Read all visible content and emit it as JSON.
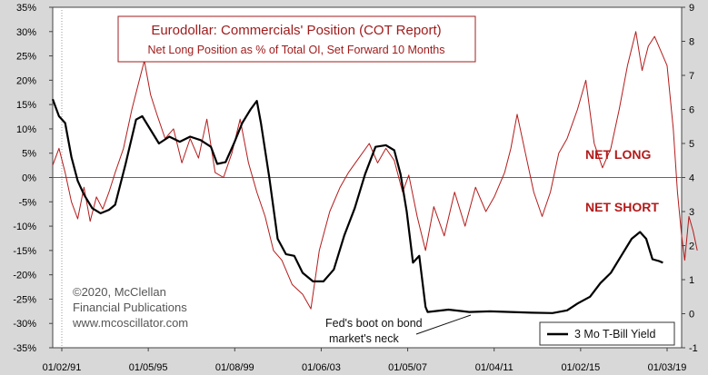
{
  "chart_data": {
    "type": "line",
    "title": "Eurodollar: Commercials' Position (COT Report)",
    "subtitle": "Net Long Position as % of Total OI, Set Forward 10 Months",
    "x_tick_labels": [
      "01/02/91",
      "01/05/95",
      "01/08/99",
      "01/06/03",
      "01/05/07",
      "01/04/11",
      "01/02/15",
      "01/03/19"
    ],
    "x_range": [
      1991.0,
      2021.2
    ],
    "left_axis": {
      "range": [
        -35,
        35
      ],
      "ticks": [
        "35%",
        "30%",
        "25%",
        "20%",
        "15%",
        "10%",
        "5%",
        "0%",
        "-5%",
        "-10%",
        "-15%",
        "-20%",
        "-25%",
        "-30%",
        "-35%"
      ],
      "tick_values": [
        35,
        30,
        25,
        20,
        15,
        10,
        5,
        0,
        -5,
        -10,
        -15,
        -20,
        -25,
        -30,
        -35
      ]
    },
    "right_axis": {
      "range": [
        -1,
        9
      ],
      "ticks": [
        "9",
        "8",
        "7",
        "6",
        "5",
        "4",
        "3",
        "2",
        "1",
        "0",
        "-1"
      ],
      "tick_values": [
        9,
        8,
        7,
        6,
        5,
        4,
        3,
        2,
        1,
        0,
        -1
      ]
    },
    "annotations": {
      "net_long": "NET LONG",
      "net_short": "NET SHORT",
      "copyright": "©2020, McClellan",
      "publisher": "Financial Publications",
      "website": "www.mcoscillator.com",
      "fed_line1": "Fed's boot on bond",
      "fed_line2": "market's neck"
    },
    "legend": "3 Mo T-Bill Yield",
    "series": [
      {
        "name": "Eurodollar Commercials Net Long % of OI (forward 10 months)",
        "color": "#b31b1b",
        "axis": "left",
        "points": [
          [
            1991.0,
            2.5
          ],
          [
            1991.3,
            6.0
          ],
          [
            1991.6,
            1.0
          ],
          [
            1991.9,
            -5.0
          ],
          [
            1992.2,
            -8.5
          ],
          [
            1992.5,
            -2.0
          ],
          [
            1992.8,
            -9.0
          ],
          [
            1993.1,
            -4.0
          ],
          [
            1993.4,
            -6.5
          ],
          [
            1993.7,
            -3.0
          ],
          [
            1994.0,
            1.0
          ],
          [
            1994.4,
            6.0
          ],
          [
            1994.8,
            14.0
          ],
          [
            1995.1,
            19.0
          ],
          [
            1995.4,
            24.0
          ],
          [
            1995.7,
            17.0
          ],
          [
            1996.0,
            13.0
          ],
          [
            1996.4,
            8.0
          ],
          [
            1996.8,
            10.0
          ],
          [
            1997.2,
            3.0
          ],
          [
            1997.6,
            8.0
          ],
          [
            1998.0,
            4.0
          ],
          [
            1998.4,
            12.0
          ],
          [
            1998.8,
            1.0
          ],
          [
            1999.2,
            0.0
          ],
          [
            1999.6,
            5.0
          ],
          [
            2000.0,
            12.0
          ],
          [
            2000.4,
            3.0
          ],
          [
            2000.8,
            -3.0
          ],
          [
            2001.2,
            -8.0
          ],
          [
            2001.6,
            -15.0
          ],
          [
            2002.0,
            -17.0
          ],
          [
            2002.5,
            -22.0
          ],
          [
            2003.0,
            -24.0
          ],
          [
            2003.4,
            -27.0
          ],
          [
            2003.8,
            -15.0
          ],
          [
            2004.3,
            -7.0
          ],
          [
            2004.8,
            -2.0
          ],
          [
            2005.2,
            1.0
          ],
          [
            2005.7,
            4.0
          ],
          [
            2006.2,
            7.0
          ],
          [
            2006.6,
            3.0
          ],
          [
            2007.0,
            6.0
          ],
          [
            2007.4,
            3.5
          ],
          [
            2007.8,
            -3.0
          ],
          [
            2008.1,
            0.5
          ],
          [
            2008.5,
            -8.0
          ],
          [
            2008.9,
            -15.0
          ],
          [
            2009.3,
            -6.0
          ],
          [
            2009.8,
            -12.0
          ],
          [
            2010.3,
            -3.0
          ],
          [
            2010.8,
            -10.0
          ],
          [
            2011.3,
            -2.0
          ],
          [
            2011.8,
            -7.0
          ],
          [
            2012.2,
            -4.0
          ],
          [
            2012.7,
            1.0
          ],
          [
            2013.0,
            6.0
          ],
          [
            2013.3,
            13.0
          ],
          [
            2013.7,
            5.0
          ],
          [
            2014.1,
            -3.0
          ],
          [
            2014.5,
            -8.0
          ],
          [
            2014.9,
            -3.0
          ],
          [
            2015.3,
            5.0
          ],
          [
            2015.7,
            8.0
          ],
          [
            2016.2,
            14.0
          ],
          [
            2016.6,
            20.0
          ],
          [
            2017.0,
            7.0
          ],
          [
            2017.4,
            2.0
          ],
          [
            2017.8,
            6.0
          ],
          [
            2018.2,
            14.0
          ],
          [
            2018.6,
            23.0
          ],
          [
            2019.0,
            30.0
          ],
          [
            2019.3,
            22.0
          ],
          [
            2019.6,
            27.0
          ],
          [
            2019.9,
            29.0
          ],
          [
            2020.2,
            26.0
          ],
          [
            2020.5,
            23.0
          ],
          [
            2020.8,
            10.0
          ],
          [
            2021.0,
            -3.0
          ],
          [
            2021.2,
            -12.0
          ],
          [
            2021.35,
            -17.0
          ],
          [
            2021.55,
            -8.0
          ],
          [
            2021.75,
            -11.0
          ],
          [
            2021.95,
            -15.0
          ]
        ]
      },
      {
        "name": "3 Mo T-Bill Yield",
        "color": "#000000",
        "axis": "right",
        "points": [
          [
            1991.0,
            6.3
          ],
          [
            1991.3,
            5.8
          ],
          [
            1991.6,
            5.6
          ],
          [
            1991.9,
            4.6
          ],
          [
            1992.2,
            3.9
          ],
          [
            1992.5,
            3.5
          ],
          [
            1992.9,
            3.1
          ],
          [
            1993.3,
            2.95
          ],
          [
            1993.7,
            3.05
          ],
          [
            1994.0,
            3.2
          ],
          [
            1994.5,
            4.4
          ],
          [
            1995.0,
            5.7
          ],
          [
            1995.3,
            5.8
          ],
          [
            1995.7,
            5.4
          ],
          [
            1996.1,
            5.0
          ],
          [
            1996.6,
            5.2
          ],
          [
            1997.1,
            5.05
          ],
          [
            1997.6,
            5.2
          ],
          [
            1998.1,
            5.1
          ],
          [
            1998.6,
            4.9
          ],
          [
            1998.9,
            4.4
          ],
          [
            1999.3,
            4.45
          ],
          [
            1999.7,
            5.0
          ],
          [
            2000.1,
            5.6
          ],
          [
            2000.5,
            6.0
          ],
          [
            2000.8,
            6.25
          ],
          [
            2001.0,
            5.6
          ],
          [
            2001.4,
            4.0
          ],
          [
            2001.8,
            2.2
          ],
          [
            2002.2,
            1.75
          ],
          [
            2002.6,
            1.7
          ],
          [
            2003.0,
            1.2
          ],
          [
            2003.5,
            0.95
          ],
          [
            2004.0,
            0.95
          ],
          [
            2004.5,
            1.3
          ],
          [
            2005.0,
            2.3
          ],
          [
            2005.5,
            3.1
          ],
          [
            2006.0,
            4.1
          ],
          [
            2006.5,
            4.9
          ],
          [
            2007.0,
            4.95
          ],
          [
            2007.4,
            4.8
          ],
          [
            2007.7,
            4.1
          ],
          [
            2008.0,
            3.0
          ],
          [
            2008.3,
            1.5
          ],
          [
            2008.6,
            1.7
          ],
          [
            2008.9,
            0.2
          ],
          [
            2009.0,
            0.05
          ],
          [
            2010.0,
            0.12
          ],
          [
            2011.0,
            0.05
          ],
          [
            2012.0,
            0.07
          ],
          [
            2013.0,
            0.05
          ],
          [
            2014.0,
            0.03
          ],
          [
            2015.0,
            0.02
          ],
          [
            2015.7,
            0.1
          ],
          [
            2016.2,
            0.3
          ],
          [
            2016.8,
            0.5
          ],
          [
            2017.3,
            0.9
          ],
          [
            2017.8,
            1.2
          ],
          [
            2018.3,
            1.7
          ],
          [
            2018.8,
            2.2
          ],
          [
            2019.2,
            2.4
          ],
          [
            2019.5,
            2.2
          ],
          [
            2019.8,
            1.6
          ],
          [
            2020.1,
            1.55
          ],
          [
            2020.3,
            1.5
          ]
        ]
      }
    ]
  }
}
